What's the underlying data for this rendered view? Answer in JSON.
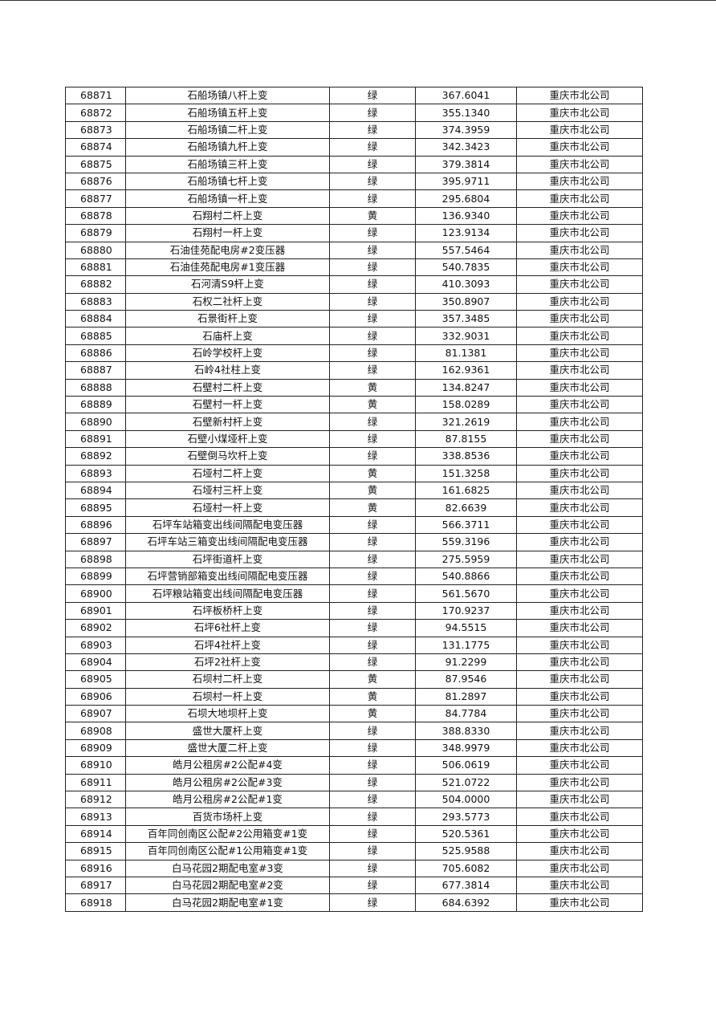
{
  "table": {
    "rows": [
      [
        "68871",
        "石船场镇八杆上变",
        "绿",
        "367.6041",
        "重庆市北公司"
      ],
      [
        "68872",
        "石船场镇五杆上变",
        "绿",
        "355.1340",
        "重庆市北公司"
      ],
      [
        "68873",
        "石船场镇二杆上变",
        "绿",
        "374.3959",
        "重庆市北公司"
      ],
      [
        "68874",
        "石船场镇九杆上变",
        "绿",
        "342.3423",
        "重庆市北公司"
      ],
      [
        "68875",
        "石船场镇三杆上变",
        "绿",
        "379.3814",
        "重庆市北公司"
      ],
      [
        "68876",
        "石船场镇七杆上变",
        "绿",
        "395.9711",
        "重庆市北公司"
      ],
      [
        "68877",
        "石船场镇一杆上变",
        "绿",
        "295.6804",
        "重庆市北公司"
      ],
      [
        "68878",
        "石翔村二杆上变",
        "黄",
        "136.9340",
        "重庆市北公司"
      ],
      [
        "68879",
        "石翔村一杆上变",
        "绿",
        "123.9134",
        "重庆市北公司"
      ],
      [
        "68880",
        "石油佳苑配电房#2变压器",
        "绿",
        "557.5464",
        "重庆市北公司"
      ],
      [
        "68881",
        "石油佳苑配电房#1变压器",
        "绿",
        "540.7835",
        "重庆市北公司"
      ],
      [
        "68882",
        "石河清S9杆上变",
        "绿",
        "410.3093",
        "重庆市北公司"
      ],
      [
        "68883",
        "石权二社杆上变",
        "绿",
        "350.8907",
        "重庆市北公司"
      ],
      [
        "68884",
        "石景街杆上变",
        "绿",
        "357.3485",
        "重庆市北公司"
      ],
      [
        "68885",
        "石庙杆上变",
        "绿",
        "332.9031",
        "重庆市北公司"
      ],
      [
        "68886",
        "石岭学校杆上变",
        "绿",
        "81.1381",
        "重庆市北公司"
      ],
      [
        "68887",
        "石岭4社柱上变",
        "绿",
        "162.9361",
        "重庆市北公司"
      ],
      [
        "68888",
        "石壁村二杆上变",
        "黄",
        "134.8247",
        "重庆市北公司"
      ],
      [
        "68889",
        "石壁村一杆上变",
        "黄",
        "158.0289",
        "重庆市北公司"
      ],
      [
        "68890",
        "石壁新村杆上变",
        "绿",
        "321.2619",
        "重庆市北公司"
      ],
      [
        "68891",
        "石壁小煤垭杆上变",
        "绿",
        "87.8155",
        "重庆市北公司"
      ],
      [
        "68892",
        "石壁倒马坎杆上变",
        "绿",
        "338.8536",
        "重庆市北公司"
      ],
      [
        "68893",
        "石垭村二杆上变",
        "黄",
        "151.3258",
        "重庆市北公司"
      ],
      [
        "68894",
        "石垭村三杆上变",
        "黄",
        "161.6825",
        "重庆市北公司"
      ],
      [
        "68895",
        "石垭村一杆上变",
        "黄",
        "82.6639",
        "重庆市北公司"
      ],
      [
        "68896",
        "石坪车站箱变出线间隔配电变压器",
        "绿",
        "566.3711",
        "重庆市北公司"
      ],
      [
        "68897",
        "石坪车站三箱变出线间隔配电变压器",
        "绿",
        "559.3196",
        "重庆市北公司"
      ],
      [
        "68898",
        "石坪街道杆上变",
        "绿",
        "275.5959",
        "重庆市北公司"
      ],
      [
        "68899",
        "石坪营销部箱变出线间隔配电变压器",
        "绿",
        "540.8866",
        "重庆市北公司"
      ],
      [
        "68900",
        "石坪粮站箱变出线间隔配电变压器",
        "绿",
        "561.5670",
        "重庆市北公司"
      ],
      [
        "68901",
        "石坪板桥杆上变",
        "绿",
        "170.9237",
        "重庆市北公司"
      ],
      [
        "68902",
        "石坪6社杆上变",
        "绿",
        "94.5515",
        "重庆市北公司"
      ],
      [
        "68903",
        "石坪4社杆上变",
        "绿",
        "131.1775",
        "重庆市北公司"
      ],
      [
        "68904",
        "石坪2社杆上变",
        "绿",
        "91.2299",
        "重庆市北公司"
      ],
      [
        "68905",
        "石坝村二杆上变",
        "黄",
        "87.9546",
        "重庆市北公司"
      ],
      [
        "68906",
        "石坝村一杆上变",
        "黄",
        "81.2897",
        "重庆市北公司"
      ],
      [
        "68907",
        "石坝大地坝杆上变",
        "黄",
        "84.7784",
        "重庆市北公司"
      ],
      [
        "68908",
        "盛世大厦杆上变",
        "绿",
        "388.8330",
        "重庆市北公司"
      ],
      [
        "68909",
        "盛世大厦二杆上变",
        "绿",
        "348.9979",
        "重庆市北公司"
      ],
      [
        "68910",
        "皓月公租房#2公配#4变",
        "绿",
        "506.0619",
        "重庆市北公司"
      ],
      [
        "68911",
        "皓月公租房#2公配#3变",
        "绿",
        "521.0722",
        "重庆市北公司"
      ],
      [
        "68912",
        "皓月公租房#2公配#1变",
        "绿",
        "504.0000",
        "重庆市北公司"
      ],
      [
        "68913",
        "百货市场杆上变",
        "绿",
        "293.5773",
        "重庆市北公司"
      ],
      [
        "68914",
        "百年同创南区公配#2公用箱变#1变",
        "绿",
        "520.5361",
        "重庆市北公司"
      ],
      [
        "68915",
        "百年同创南区公配#1公用箱变#1变",
        "绿",
        "525.9588",
        "重庆市北公司"
      ],
      [
        "68916",
        "白马花园2期配电室#3变",
        "绿",
        "705.6082",
        "重庆市北公司"
      ],
      [
        "68917",
        "白马花园2期配电室#2变",
        "绿",
        "677.3814",
        "重庆市北公司"
      ],
      [
        "68918",
        "白马花园2期配电室#1变",
        "绿",
        "684.6392",
        "重庆市北公司"
      ]
    ]
  }
}
